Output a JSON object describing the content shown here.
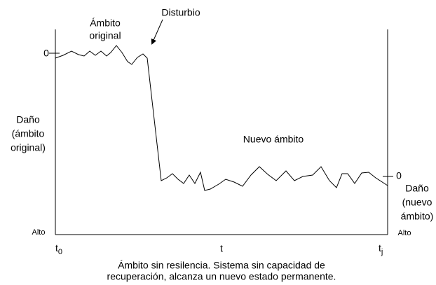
{
  "region_labels": {
    "original": [
      "Ámbito",
      "original"
    ],
    "new": "Nuevo ámbito"
  },
  "disturbance": "Disturbio",
  "left_axis": {
    "zero": "0",
    "title": [
      "Daño",
      "(ámbito",
      "original)"
    ],
    "bottom": "Alto"
  },
  "right_axis": {
    "zero": "0",
    "title": [
      "Daño",
      "(nuevo",
      "ámbito)"
    ],
    "bottom": "Alto"
  },
  "time_axis": {
    "start": {
      "base": "t",
      "sub": "0"
    },
    "middle": "t",
    "end": {
      "base": "t",
      "sub": "j"
    }
  },
  "caption": [
    "Ámbito sin resilencia. Sistema sin capacidad de",
    "recuperación, alcanza un nuevo estado permanente."
  ]
}
